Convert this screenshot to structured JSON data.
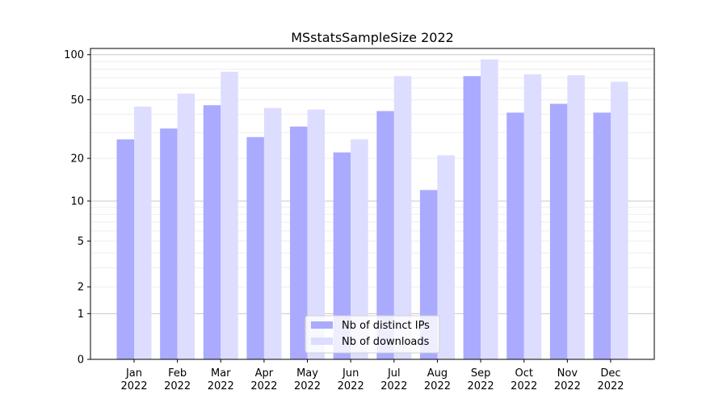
{
  "chart_data": {
    "type": "bar",
    "title": "MSstatsSampleSize 2022",
    "xlabel": "",
    "ylabel": "",
    "yscale": "log(y+1)",
    "ylim": [
      0,
      110
    ],
    "yticks": [
      0,
      1,
      2,
      5,
      10,
      20,
      50,
      100
    ],
    "categories": [
      [
        "Jan",
        "2022"
      ],
      [
        "Feb",
        "2022"
      ],
      [
        "Mar",
        "2022"
      ],
      [
        "Apr",
        "2022"
      ],
      [
        "May",
        "2022"
      ],
      [
        "Jun",
        "2022"
      ],
      [
        "Jul",
        "2022"
      ],
      [
        "Aug",
        "2022"
      ],
      [
        "Sep",
        "2022"
      ],
      [
        "Oct",
        "2022"
      ],
      [
        "Nov",
        "2022"
      ],
      [
        "Dec",
        "2022"
      ]
    ],
    "series": [
      {
        "name": "Nb of distinct IPs",
        "color": "#aaaaff",
        "values": [
          27,
          32,
          46,
          28,
          33,
          22,
          42,
          12,
          72,
          41,
          47,
          41
        ]
      },
      {
        "name": "Nb of downloads",
        "color": "#ddddff",
        "values": [
          45,
          55,
          77,
          44,
          43,
          27,
          72,
          21,
          93,
          74,
          73,
          66
        ]
      }
    ],
    "grid": true,
    "legend": "bottom-center"
  }
}
